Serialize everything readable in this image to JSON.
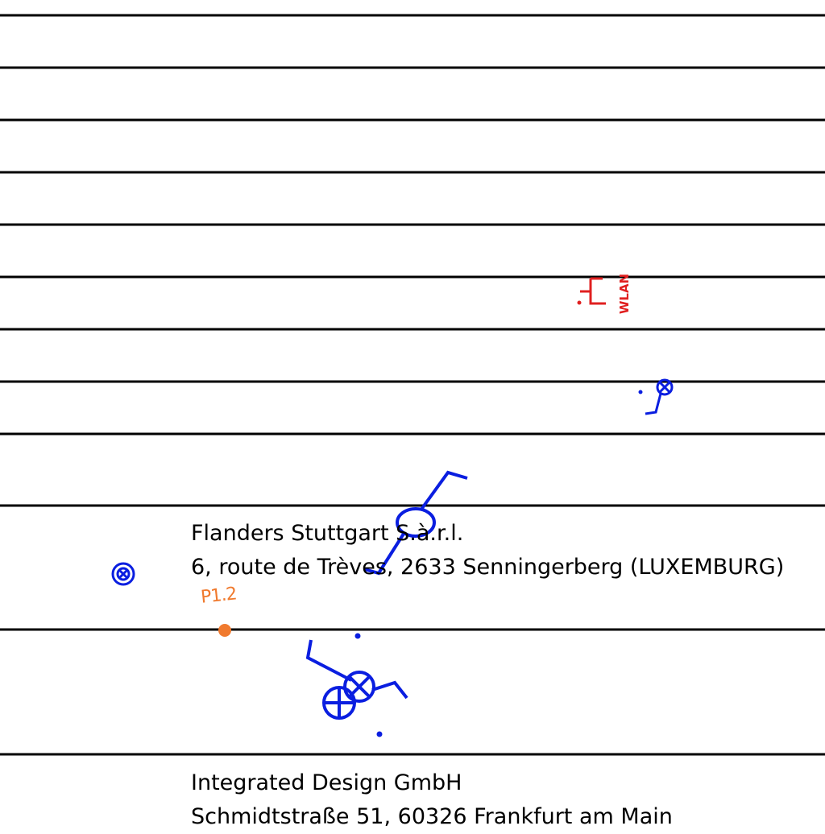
{
  "addresses": [
    {
      "name": "Flanders Stuttgart S.à.r.l.",
      "street": "6, route de Trèves,  2633 Senningerberg (LUXEMBURG)"
    },
    {
      "name": "Integrated Design GmbH",
      "street": "Schmidtstraße 51,  60326 Frankfurt am Main"
    }
  ],
  "markers": {
    "point_label": "P1.2",
    "wlan_label": "WLAN"
  },
  "colors": {
    "line": "#000000",
    "symbol_blue": "#0a1ee0",
    "wlan_red": "#e02020",
    "point_orange": "#f07a2e"
  }
}
